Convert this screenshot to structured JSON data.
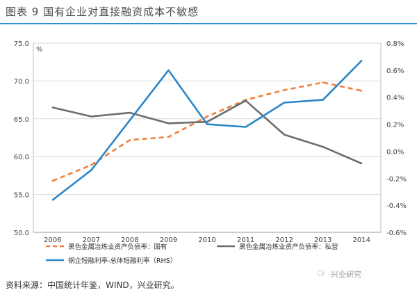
{
  "figure_title": "图表 9   国有企业对直接融资成本不敏感",
  "source_note": "资料来源：中国统计年鉴，WIND，兴业研究。",
  "watermark": "兴业研究",
  "chart_data": {
    "type": "line",
    "categories": [
      "2006",
      "2007",
      "2008",
      "2009",
      "2010",
      "2011",
      "2012",
      "2013",
      "2014"
    ],
    "y_left": {
      "unit": "%",
      "ylim": [
        50.0,
        75.0
      ],
      "ticks": [
        "50.0",
        "55.0",
        "60.0",
        "65.0",
        "70.0",
        "75.0"
      ]
    },
    "y_right": {
      "ylim": [
        -0.6,
        0.8
      ],
      "ticks": [
        "-0.6%",
        "-0.4%",
        "-0.2%",
        "0.0%",
        "0.2%",
        "0.4%",
        "0.6%",
        "0.8%"
      ]
    },
    "series": [
      {
        "name": "黑色金属冶炼业资产负债率：国有",
        "axis": "left",
        "color": "#f07f3c",
        "dash": true,
        "values": [
          56.8,
          58.9,
          62.2,
          62.6,
          65.3,
          67.5,
          68.8,
          69.8,
          68.7
        ]
      },
      {
        "name": "黑色金属冶炼业资产负债率：私营",
        "axis": "left",
        "color": "#6d6d6d",
        "dash": false,
        "values": [
          66.5,
          65.3,
          65.8,
          64.4,
          64.6,
          67.4,
          62.9,
          61.3,
          59.1
        ]
      },
      {
        "name": "钢企短融利率-总体短融利率（RHS）",
        "axis": "right",
        "color": "#2a86c8",
        "dash": false,
        "values": [
          -0.36,
          -0.14,
          0.23,
          0.6,
          0.2,
          0.18,
          0.36,
          0.38,
          0.67
        ]
      }
    ],
    "grid": "horizontal"
  }
}
